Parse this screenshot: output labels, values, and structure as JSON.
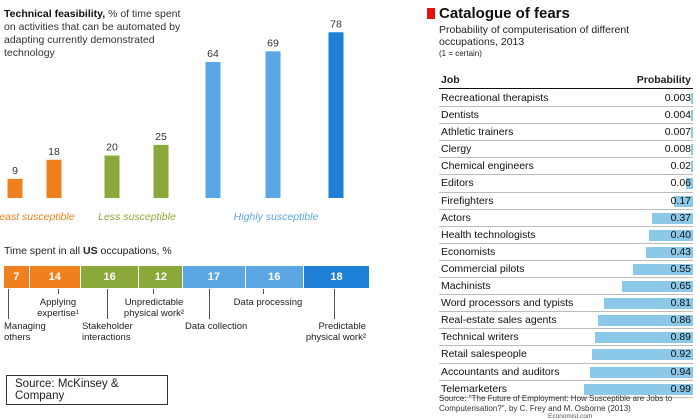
{
  "left_chart": {
    "title_bold": "Technical feasibility,",
    "title_rest": " % of time spent on activities that can be automated by adapting currently demonstrated technology",
    "chart_data": {
      "type": "bar",
      "title": "Technical feasibility, % of time spent on activities that can be automated by adapting currently demonstrated technology",
      "values": [
        9,
        18,
        20,
        25,
        64,
        69,
        78
      ],
      "colors": [
        "#f07f1d",
        "#f07f1d",
        "#8ba83a",
        "#8ba83a",
        "#5aa7e3",
        "#5aa7e3",
        "#1e7fd6"
      ],
      "groups": [
        {
          "label": "Least susceptible",
          "color": "#f07f1d"
        },
        {
          "label": "Less susceptible",
          "color": "#8ba83a"
        },
        {
          "label": "Highly susceptible",
          "color": "#5aa7e3"
        }
      ],
      "ylim": [
        0,
        80
      ]
    }
  },
  "time_spent": {
    "title_prefix": "Time spent in all ",
    "title_bold": "US",
    "title_suffix": " occupations, %",
    "segments": [
      {
        "value": "7",
        "color": "#f07f1d",
        "share": 7
      },
      {
        "value": "14",
        "color": "#f07f1d",
        "share": 14
      },
      {
        "value": "16",
        "color": "#8ba83a",
        "share": 16
      },
      {
        "value": "12",
        "color": "#8ba83a",
        "share": 12
      },
      {
        "value": "17",
        "color": "#5aa7e3",
        "share": 17
      },
      {
        "value": "16",
        "color": "#5aa7e3",
        "share": 16
      },
      {
        "value": "18",
        "color": "#1e7fd6",
        "share": 18
      }
    ],
    "labels": {
      "managing": "Managing others",
      "applying": "Applying expertise¹",
      "stakeholder": "Stakeholder interactions",
      "unpredictable": "Unpredictable physical work²",
      "collection": "Data collection",
      "processing": "Data processing",
      "predictable": "Predictable physical work²"
    }
  },
  "source_box": "Source: McKinsey & Company",
  "right_table": {
    "title": "Catalogue of fears",
    "subtitle": "Probability of computerisation of different occupations, 2013",
    "note": "(1 = certain)",
    "col_job": "Job",
    "col_prob": "Probability",
    "accent": "#e3120b",
    "bar_color": "#8cc8e8",
    "rows": [
      {
        "job": "Recreational therapists",
        "prob": "0.003",
        "value": 0.003
      },
      {
        "job": "Dentists",
        "prob": "0.004",
        "value": 0.004
      },
      {
        "job": "Athletic trainers",
        "prob": "0.007",
        "value": 0.007
      },
      {
        "job": "Clergy",
        "prob": "0.008",
        "value": 0.008
      },
      {
        "job": "Chemical engineers",
        "prob": "0.02",
        "value": 0.02
      },
      {
        "job": "Editors",
        "prob": "0.06",
        "value": 0.06
      },
      {
        "job": "Firefighters",
        "prob": "0.17",
        "value": 0.17
      },
      {
        "job": "Actors",
        "prob": "0.37",
        "value": 0.37
      },
      {
        "job": "Health technologists",
        "prob": "0.40",
        "value": 0.4
      },
      {
        "job": "Economists",
        "prob": "0.43",
        "value": 0.43
      },
      {
        "job": "Commercial pilots",
        "prob": "0.55",
        "value": 0.55
      },
      {
        "job": "Machinists",
        "prob": "0.65",
        "value": 0.65
      },
      {
        "job": "Word processors and typists",
        "prob": "0.81",
        "value": 0.81
      },
      {
        "job": "Real-estate sales agents",
        "prob": "0.86",
        "value": 0.86
      },
      {
        "job": "Technical writers",
        "prob": "0.89",
        "value": 0.89
      },
      {
        "job": "Retail salespeople",
        "prob": "0.92",
        "value": 0.92
      },
      {
        "job": "Accountants and auditors",
        "prob": "0.94",
        "value": 0.94
      },
      {
        "job": "Telemarketers",
        "prob": "0.99",
        "value": 0.99
      }
    ],
    "source": "Source: \"The Future of Employment: How Susceptible are Jobs to Computerisation?\", by C. Frey and M. Osborne (2013)",
    "footer": "Economist.com"
  }
}
